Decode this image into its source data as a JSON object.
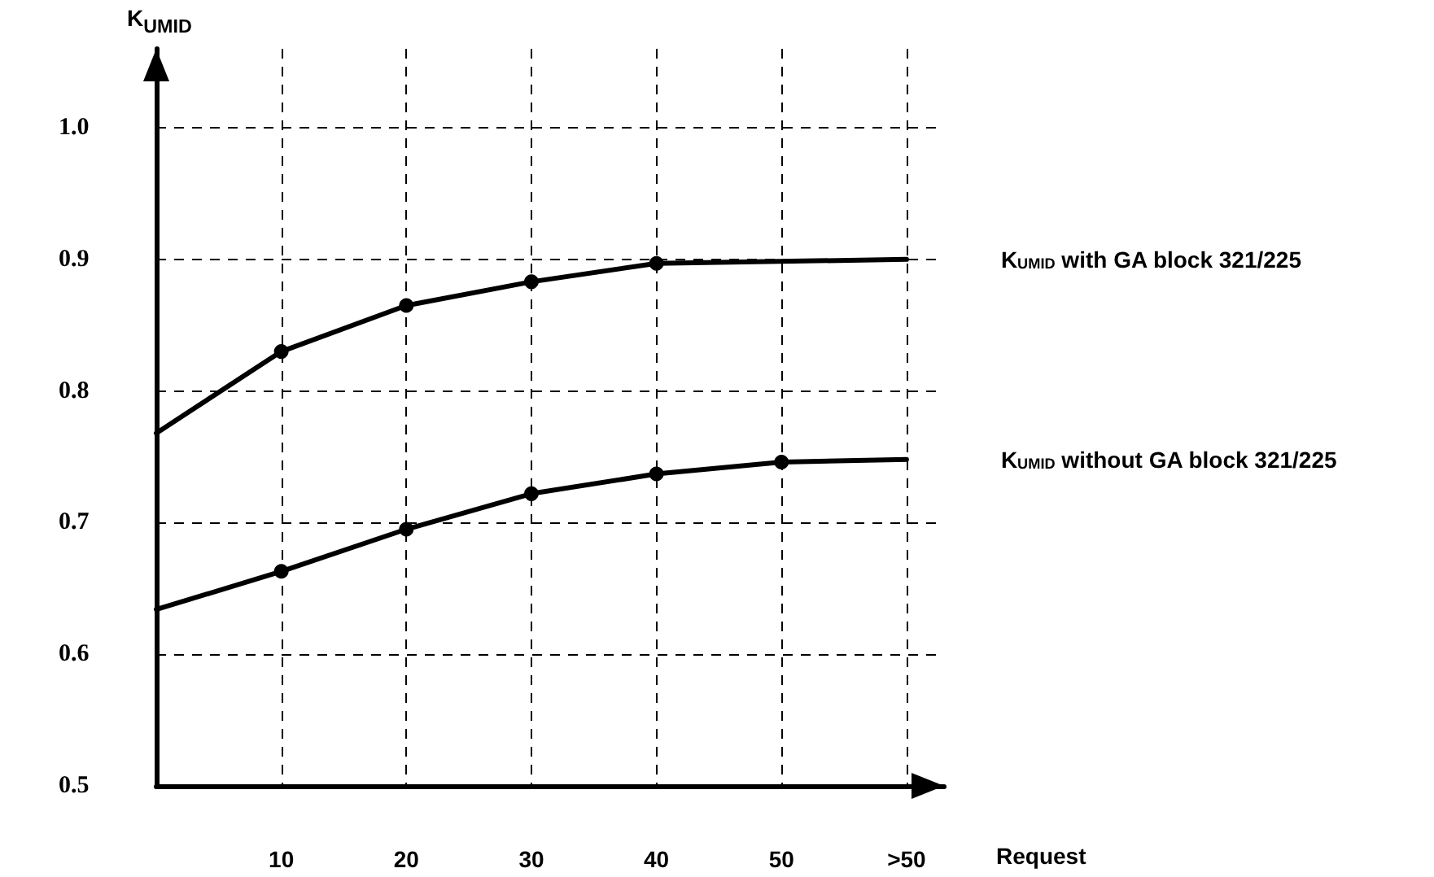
{
  "chart_data": {
    "type": "line",
    "xlabel": "Request",
    "ylabel": "K$_{UMID}$",
    "xlim": [
      0,
      63
    ],
    "ylim": [
      0.5,
      1.06
    ],
    "xticks": [
      10,
      20,
      30,
      40,
      50,
      {
        "value": 60,
        "label": ">50"
      }
    ],
    "yticks": [
      0.5,
      0.6,
      0.7,
      0.8,
      0.9,
      {
        "value": 1,
        "label": "1.0"
      }
    ],
    "grid": true,
    "marker": "circle",
    "line_style": "solid",
    "series": [
      {
        "name": "K$_{UMID}$ with GA block 321/225",
        "color": "#000000",
        "x": [
          0,
          10,
          20,
          30,
          40,
          60
        ],
        "values": [
          0.768,
          0.83,
          0.865,
          0.883,
          0.897,
          0.9
        ]
      },
      {
        "name": "K$_{UMID}$ without GA block 321/225",
        "color": "#000000",
        "x": [
          0,
          10,
          20,
          30,
          40,
          50,
          60
        ],
        "values": [
          0.634,
          0.663,
          0.695,
          0.722,
          0.737,
          0.746,
          0.748
        ]
      }
    ]
  }
}
